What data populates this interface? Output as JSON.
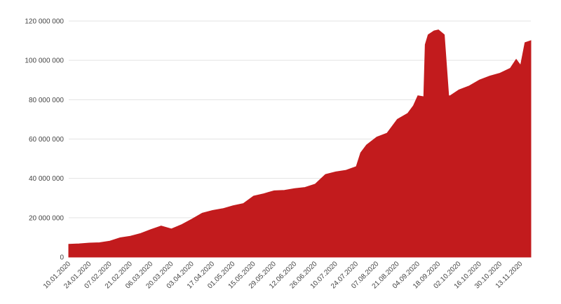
{
  "chart_data": {
    "type": "area",
    "title": "",
    "xlabel": "",
    "ylabel": "",
    "grid": true,
    "legend": "none",
    "color": "#c21b1d",
    "ylim": [
      0,
      120000000
    ],
    "y_ticks": [
      0,
      20000000,
      40000000,
      60000000,
      80000000,
      100000000,
      120000000
    ],
    "y_tick_labels": [
      "0",
      "20 000 000",
      "40 000 000",
      "60 000 000",
      "80 000 000",
      "100 000 000",
      "120 000 000"
    ],
    "x_tick_labels": [
      "10.01.2020",
      "24.01.2020",
      "07.02.2020",
      "21.02.2020",
      "06.03.2020",
      "20.03.2020",
      "03.04.2020",
      "17.04.2020",
      "01.05.2020",
      "15.05.2020",
      "29.05.2020",
      "12.06.2020",
      "26.06.2020",
      "10.07.2020",
      "24.07.2020",
      "07.08.2020",
      "21.08.2020",
      "04.09.2020",
      "18.09.2020",
      "02.10.2020",
      "16.10.2020",
      "30.10.2020",
      "13.11.2020"
    ],
    "x_range": [
      "10.01.2020",
      "20.11.2020"
    ],
    "x": [
      "10.01.2020",
      "17.01.2020",
      "24.01.2020",
      "31.01.2020",
      "07.02.2020",
      "14.02.2020",
      "21.02.2020",
      "28.02.2020",
      "06.03.2020",
      "13.03.2020",
      "20.03.2020",
      "27.03.2020",
      "03.04.2020",
      "10.04.2020",
      "17.04.2020",
      "24.04.2020",
      "01.05.2020",
      "08.05.2020",
      "15.05.2020",
      "22.05.2020",
      "29.05.2020",
      "05.06.2020",
      "12.06.2020",
      "19.06.2020",
      "26.06.2020",
      "03.07.2020",
      "10.07.2020",
      "17.07.2020",
      "24.07.2020",
      "27.07.2020",
      "31.07.2020",
      "07.08.2020",
      "14.08.2020",
      "21.08.2020",
      "28.08.2020",
      "01.09.2020",
      "04.09.2020",
      "08.09.2020",
      "09.09.2020",
      "11.09.2020",
      "15.09.2020",
      "18.09.2020",
      "22.09.2020",
      "25.09.2020",
      "26.09.2020",
      "02.10.2020",
      "09.10.2020",
      "16.10.2020",
      "23.10.2020",
      "30.10.2020",
      "06.11.2020",
      "10.11.2020",
      "13.11.2020",
      "16.11.2020",
      "18.11.2020",
      "20.11.2020"
    ],
    "values": [
      6500000,
      6700000,
      7100000,
      7300000,
      8100000,
      9800000,
      10600000,
      12000000,
      14000000,
      15800000,
      14300000,
      16500000,
      19300000,
      22300000,
      23700000,
      24600000,
      26100000,
      27200000,
      31000000,
      32200000,
      33700000,
      33900000,
      34800000,
      35400000,
      37100000,
      42000000,
      43300000,
      44100000,
      46000000,
      53000000,
      57000000,
      61000000,
      63000000,
      70000000,
      73000000,
      77000000,
      82000000,
      81500000,
      108000000,
      113000000,
      115000000,
      115500000,
      113000000,
      82000000,
      82000000,
      85000000,
      87000000,
      90000000,
      92000000,
      93500000,
      96000000,
      100500000,
      97500000,
      109000000,
      109500000,
      110000000
    ]
  }
}
